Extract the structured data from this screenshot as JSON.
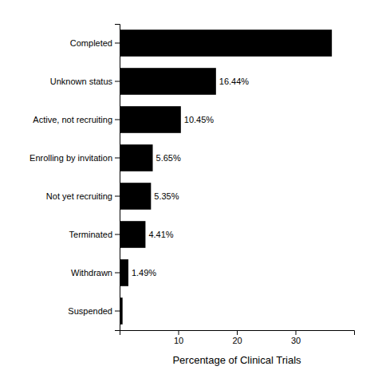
{
  "chart_data": {
    "type": "bar",
    "orientation": "horizontal",
    "categories": [
      "Completed",
      "Unknown status",
      "Active, not recruiting",
      "Enrolling by invitation",
      "Not yet recruiting",
      "Terminated",
      "Withdrawn",
      "Suspended"
    ],
    "values": [
      36.21,
      16.44,
      10.45,
      5.65,
      5.35,
      4.41,
      1.49,
      0.5
    ],
    "value_labels": [
      null,
      "16.44%",
      "10.45%",
      "5.65%",
      "5.35%",
      "4.41%",
      "1.49%",
      null
    ],
    "data_labels": true,
    "color": "#000000",
    "xlabel": "Percentage of Clinical Trials",
    "xlim": [
      0,
      40
    ],
    "xticks": [
      10,
      20,
      30
    ]
  }
}
